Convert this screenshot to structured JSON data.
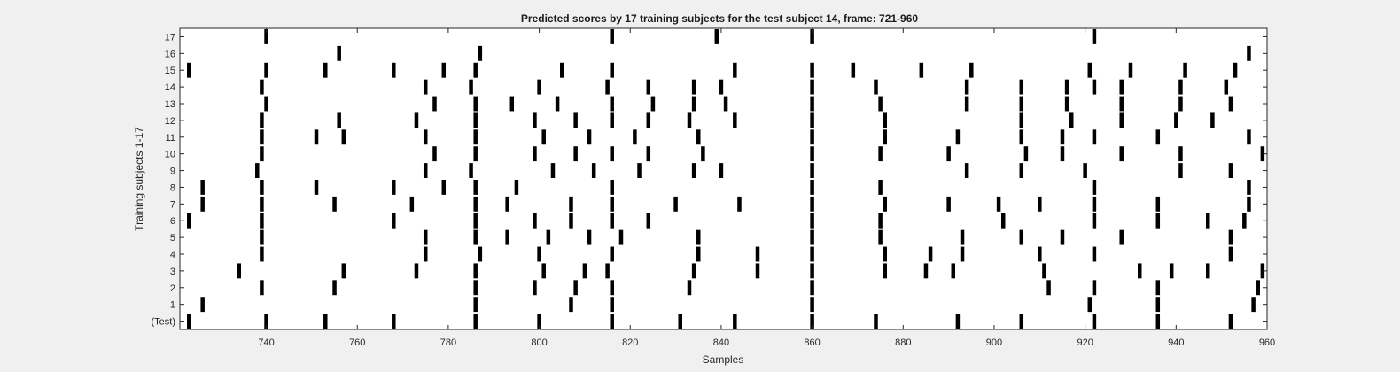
{
  "chart_data": {
    "type": "raster",
    "title": "Predicted scores by 17 training subjects for the test subject 14, frame: 721-960",
    "xlabel": "Samples",
    "ylabel": "Training subjects 1-17",
    "xlim": [
      721,
      960
    ],
    "xticks": [
      740,
      760,
      780,
      800,
      820,
      840,
      860,
      880,
      900,
      920,
      940,
      960
    ],
    "rows": [
      {
        "label": "(Test)",
        "x": [
          723,
          740,
          753,
          768,
          786,
          800,
          816,
          831,
          843,
          860,
          874,
          892,
          906,
          922,
          936,
          952
        ]
      },
      {
        "label": "1",
        "x": [
          726,
          786,
          807,
          816,
          860,
          921,
          936,
          957
        ]
      },
      {
        "label": "2",
        "x": [
          739,
          755,
          786,
          799,
          808,
          816,
          833,
          860,
          912,
          922,
          936,
          958
        ]
      },
      {
        "label": "3",
        "x": [
          734,
          757,
          773,
          786,
          801,
          810,
          815,
          834,
          848,
          860,
          876,
          885,
          891,
          911,
          932,
          939,
          947,
          959
        ]
      },
      {
        "label": "4",
        "x": [
          739,
          775,
          787,
          800,
          816,
          835,
          848,
          860,
          876,
          886,
          893,
          910,
          922,
          952
        ]
      },
      {
        "label": "5",
        "x": [
          739,
          775,
          786,
          793,
          802,
          811,
          818,
          835,
          860,
          875,
          893,
          906,
          915,
          928,
          952
        ]
      },
      {
        "label": "6",
        "x": [
          723,
          739,
          768,
          786,
          799,
          807,
          816,
          824,
          860,
          875,
          902,
          922,
          936,
          947,
          955
        ]
      },
      {
        "label": "7",
        "x": [
          726,
          739,
          755,
          772,
          786,
          793,
          807,
          816,
          830,
          844,
          860,
          876,
          890,
          901,
          910,
          922,
          936,
          956
        ]
      },
      {
        "label": "8",
        "x": [
          726,
          739,
          751,
          768,
          779,
          786,
          795,
          816,
          860,
          875,
          922,
          956
        ]
      },
      {
        "label": "9",
        "x": [
          738,
          775,
          785,
          803,
          812,
          822,
          834,
          840,
          860,
          894,
          906,
          920,
          941,
          952
        ]
      },
      {
        "label": "10",
        "x": [
          739,
          777,
          786,
          799,
          808,
          816,
          824,
          836,
          860,
          875,
          890,
          907,
          915,
          928,
          941,
          959
        ]
      },
      {
        "label": "11",
        "x": [
          739,
          751,
          757,
          775,
          786,
          801,
          811,
          821,
          835,
          860,
          876,
          892,
          906,
          915,
          922,
          936,
          956
        ]
      },
      {
        "label": "12",
        "x": [
          739,
          756,
          773,
          786,
          799,
          808,
          816,
          824,
          833,
          843,
          860,
          876,
          906,
          917,
          928,
          940,
          948
        ]
      },
      {
        "label": "13",
        "x": [
          740,
          777,
          786,
          794,
          804,
          816,
          825,
          834,
          841,
          860,
          875,
          894,
          906,
          916,
          928,
          941,
          952
        ]
      },
      {
        "label": "14",
        "x": [
          739,
          775,
          785,
          800,
          815,
          824,
          834,
          840,
          860,
          874,
          894,
          906,
          916,
          922,
          928,
          941,
          951
        ]
      },
      {
        "label": "15",
        "x": [
          723,
          740,
          753,
          768,
          779,
          786,
          805,
          816,
          843,
          860,
          869,
          884,
          895,
          921,
          930,
          942,
          953
        ]
      },
      {
        "label": "16",
        "x": [
          756,
          787,
          956
        ]
      },
      {
        "label": "17",
        "x": [
          740,
          816,
          839,
          860,
          922
        ]
      }
    ]
  }
}
